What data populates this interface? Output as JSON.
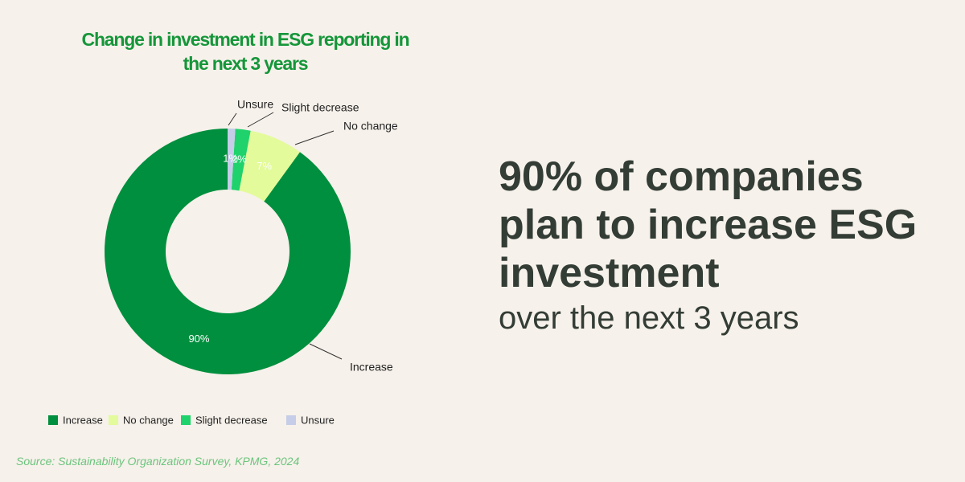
{
  "chart_data": {
    "type": "donut",
    "title": "Change in investment in ESG reporting in the next 3 years",
    "categories": [
      "Increase",
      "No change",
      "Slight decrease",
      "Unsure"
    ],
    "values": [
      90,
      7,
      2,
      1
    ],
    "value_labels": [
      "90%",
      "7%",
      "2%",
      "1%"
    ],
    "colors": [
      "#008f3e",
      "#e3fb9a",
      "#1fd26b",
      "#c5cde8"
    ],
    "legend": "bottom"
  },
  "headline": "90% of companies plan to increase ESG investment",
  "subheadline": "over the next 3 years",
  "source": "Source: Sustainability Organization Survey, KPMG, 2024"
}
